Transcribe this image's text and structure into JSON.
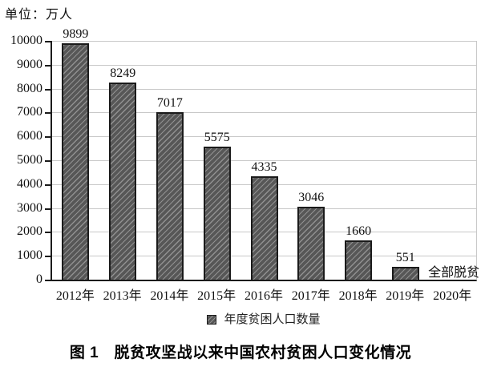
{
  "unit_label": "单位：万人",
  "legend": {
    "label": "年度贫困人口数量"
  },
  "caption": "图 1　脱贫攻坚战以来中国农村贫困人口变化情况",
  "colors": {
    "bar_fill": "#575757",
    "bar_hatch_line": "#919191",
    "bar_border": "#1b1b1b",
    "gridline": "#c8c8c8",
    "axis": "#1b1b1b",
    "text": "#111111"
  },
  "chart_data": {
    "type": "bar",
    "categories": [
      "2012年",
      "2013年",
      "2014年",
      "2015年",
      "2016年",
      "2017年",
      "2018年",
      "2019年",
      "2020年"
    ],
    "values": [
      9899,
      8249,
      7017,
      5575,
      4335,
      3046,
      1660,
      551,
      null
    ],
    "annotation": {
      "text": "全部脱贫",
      "category": "2020年",
      "y": 0
    },
    "series_name": "年度贫困人口数量",
    "ylabel": "单位：万人",
    "ylim": [
      0,
      10000
    ],
    "ytick_step": 1000,
    "ytick_labels": [
      "0",
      "1000",
      "2000",
      "3000",
      "4000",
      "5000",
      "6000",
      "7000",
      "8000",
      "9000",
      "10000"
    ],
    "grid": true,
    "legend_position": "bottom",
    "hatch": "/",
    "title": "图 1　脱贫攻坚战以来中国农村贫困人口变化情况"
  }
}
